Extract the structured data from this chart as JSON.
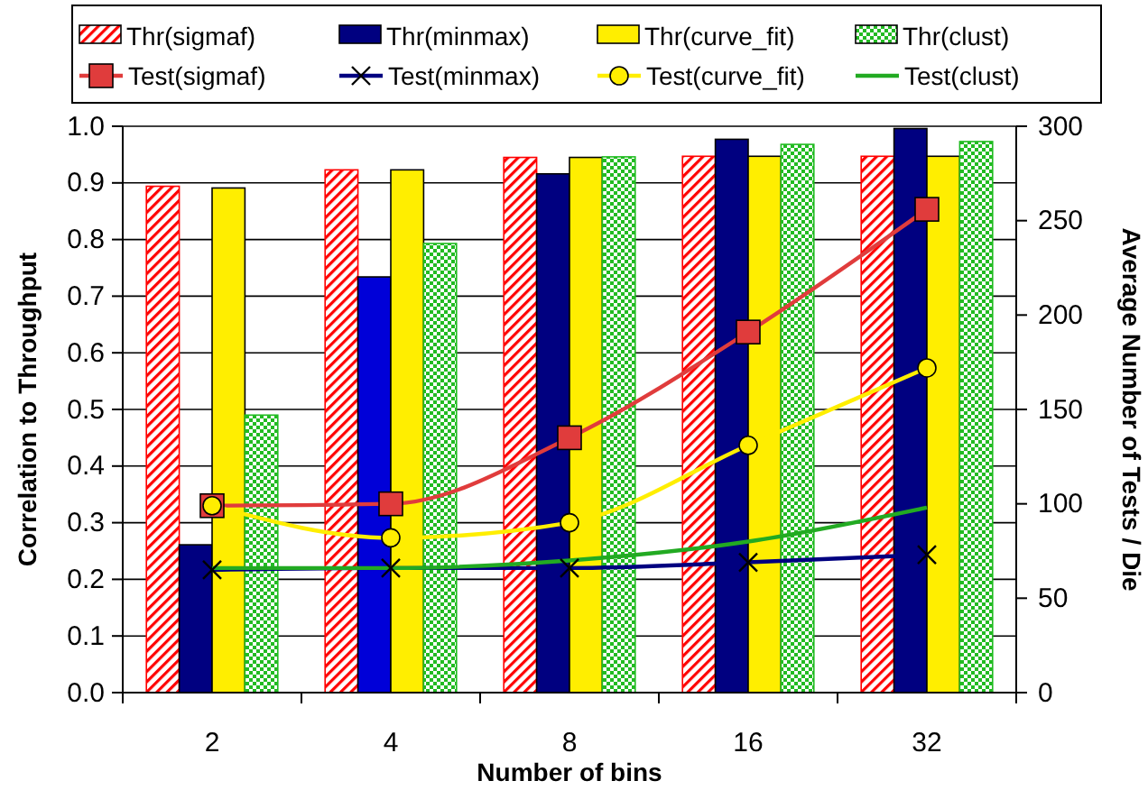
{
  "chart_data": {
    "type": "bar",
    "categories": [
      "2",
      "4",
      "8",
      "16",
      "32"
    ],
    "xlabel": "Number of bins",
    "ylabel": "Correlation to Throughput",
    "y2label": "Average Number of Tests / Die",
    "ylim": [
      0,
      1
    ],
    "yticks": [
      {
        "value": 0,
        "label": "0.0"
      },
      0.1,
      0.2,
      0.3,
      0.4,
      0.5,
      0.6,
      0.7,
      0.8,
      0.9,
      {
        "value": 1,
        "label": "1.0"
      }
    ],
    "y2lim": [
      0,
      300
    ],
    "y2ticks": [
      0,
      50,
      100,
      150,
      200,
      250,
      300
    ],
    "grid": "y",
    "legend": "top",
    "series": [
      {
        "name": "Thr(sigmaf)",
        "color": "#ff0000",
        "values": [
          0.894,
          0.923,
          0.945,
          0.947,
          0.947
        ]
      },
      {
        "name": "Thr(minmax)",
        "color": "#000080",
        "colors": [
          "#000080",
          "#0000d8",
          "#000080",
          "#000080",
          "#000080"
        ],
        "values": [
          0.261,
          0.734,
          0.916,
          0.977,
          0.996
        ]
      },
      {
        "name": "Thr(curve_fit)",
        "color": "#ffee00",
        "values": [
          0.891,
          0.923,
          0.945,
          0.947,
          0.947
        ]
      },
      {
        "name": "Thr(clust)",
        "color": "#22bb22",
        "values": [
          0.49,
          0.793,
          0.946,
          0.968,
          0.973
        ]
      },
      {
        "name": "Test(sigmaf)",
        "type": "line",
        "axis": "y2",
        "color": "#e03c3c",
        "marker": "square",
        "values": [
          99,
          100,
          135,
          191,
          256
        ]
      },
      {
        "name": "Test(minmax)",
        "type": "line",
        "axis": "y2",
        "color": "#000080",
        "marker": "cross",
        "values": [
          65,
          66,
          66,
          69,
          73
        ]
      },
      {
        "name": "Test(curve_fit)",
        "type": "line",
        "axis": "y2",
        "color": "#ffee00",
        "marker": "circle",
        "values": [
          99,
          82,
          90,
          131,
          172
        ]
      },
      {
        "name": "Test(clust)",
        "type": "line",
        "axis": "y2",
        "color": "#22aa22",
        "marker": "none",
        "values": [
          66,
          66,
          70,
          80,
          98
        ]
      }
    ]
  }
}
